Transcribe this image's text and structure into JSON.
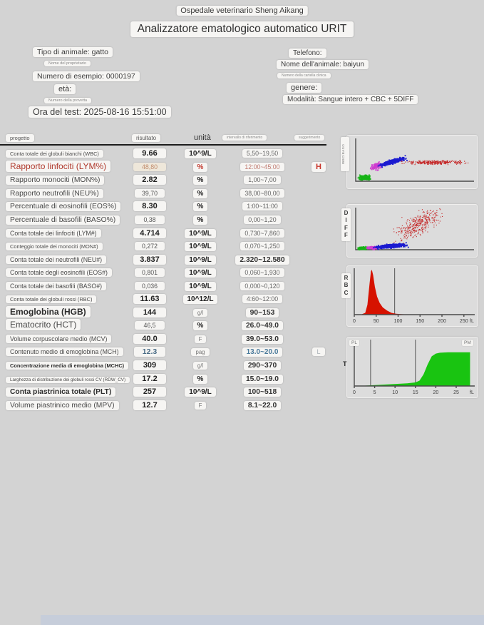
{
  "header": {
    "hospital": "Ospedale veterinario Sheng Aikang",
    "title": "Analizzatore ematologico automatico URIT"
  },
  "info": {
    "left": [
      {
        "text": "Tipo di animale: gatto"
      },
      {
        "text": "Nome del proprietario"
      },
      {
        "text": "Numero di esempio: 0000197"
      },
      {
        "text": "età:"
      },
      {
        "text": "Numero della provetta"
      },
      {
        "text": "Ora del test: 2025-08-16 15:51:00"
      }
    ],
    "right": [
      {
        "text": "Telefono:"
      },
      {
        "text": "Nome dell'animale: baiyun"
      },
      {
        "text": "Numero della cartella clinica"
      },
      {
        "text": "genere:"
      },
      {
        "text": "Modalità: Sangue intero + CBC + 5DIFF"
      }
    ]
  },
  "table": {
    "columns": {
      "project": "progetto",
      "result": "risultato",
      "unit": "unità",
      "range": "intervallo di riferimento",
      "suggestion": "suggerimento"
    },
    "rows": [
      {
        "label": "Conta totale dei globuli bianchi (WBC)",
        "result": "9.66",
        "unit": "10^9/L",
        "range": "5,50~19,50",
        "flag": "",
        "label_size": "xs",
        "result_style": "bold",
        "range_style": "plain"
      },
      {
        "label": "Rapporto linfociti (LYM%)",
        "result": "48,80",
        "unit": "%",
        "range": "12:00~45:00",
        "flag": "H",
        "alert": true,
        "label_size": "l",
        "result_style": "alert",
        "range_style": "alert"
      },
      {
        "label": "Rapporto monociti (MON%)",
        "result": "2.82",
        "unit": "%",
        "range": "1,00~7,00",
        "flag": "",
        "label_size": "m",
        "result_style": "bold",
        "range_style": "plain"
      },
      {
        "label": "Rapporto neutrofili (NEU%)",
        "result": "39,70",
        "unit": "%",
        "range": "38,00~80,00",
        "flag": "",
        "label_size": "m",
        "result_style": "plain",
        "range_style": "plain"
      },
      {
        "label": "Percentuale di eosinofili (EOS%)",
        "result": "8.30",
        "unit": "%",
        "range": "1:00~11:00",
        "flag": "",
        "label_size": "m",
        "result_style": "bold",
        "range_style": "plain"
      },
      {
        "label": "Percentuale di basofili (BASO%)",
        "result": "0,38",
        "unit": "%",
        "range": "0,00~1,20",
        "flag": "",
        "label_size": "m",
        "result_style": "plain",
        "range_style": "plain"
      },
      {
        "label": "Conta totale dei linfociti (LYM#)",
        "result": "4.714",
        "unit": "10^9/L",
        "range": "0,730~7,860",
        "flag": "",
        "label_size": "s",
        "result_style": "bold",
        "range_style": "plain"
      },
      {
        "label": "Conteggio totale dei monociti (MON#)",
        "result": "0,272",
        "unit": "10^9/L",
        "range": "0,070~1,250",
        "flag": "",
        "label_size": "xs",
        "result_style": "plain",
        "range_style": "plain"
      },
      {
        "label": "Conta totale dei neutrofili (NEU#)",
        "result": "3.837",
        "unit": "10^9/L",
        "range": "2.320~12.580",
        "flag": "",
        "label_size": "s",
        "result_style": "bold",
        "range_style": "bold"
      },
      {
        "label": "Conta totale degli eosinofili (EOS#)",
        "result": "0,801",
        "unit": "10^9/L",
        "range": "0,060~1,930",
        "flag": "",
        "label_size": "s",
        "result_style": "plain",
        "range_style": "plain"
      },
      {
        "label": "Conta totale dei basofili (BASO#)",
        "result": "0,036",
        "unit": "10^9/L",
        "range": "0,000~0,120",
        "flag": "",
        "label_size": "s",
        "result_style": "plain",
        "range_style": "plain"
      },
      {
        "label": "Conta totale dei globuli rossi (RBC)",
        "result": "11.63",
        "unit": "10^12/L",
        "range": "4:60~12:00",
        "flag": "",
        "label_size": "xs",
        "result_style": "bold",
        "range_style": "plain"
      },
      {
        "label": "Emoglobina (HGB)",
        "result": "144",
        "unit": "g/l",
        "range": "90~153",
        "flag": "",
        "label_size": "l",
        "label_bold": true,
        "result_style": "bold",
        "range_style": "bold"
      },
      {
        "label": "Ematocrito (HCT)",
        "result": "46,5",
        "unit": "%",
        "range": "26.0~49.0",
        "flag": "",
        "label_size": "l",
        "result_style": "plain",
        "range_style": "bold"
      },
      {
        "label": "Volume corpuscolare medio (MCV)",
        "result": "40.0",
        "unit": "F",
        "range": "39.0~53.0",
        "flag": "",
        "label_size": "s",
        "result_style": "bold",
        "range_style": "bold"
      },
      {
        "label": "Contenuto medio di emoglobina (MCH)",
        "result": "12.3",
        "unit": "pag",
        "range": "13.0~20.0",
        "flag": "L",
        "label_size": "s",
        "result_style": "steel",
        "range_style": "steel"
      },
      {
        "label": "Concentrazione media di emoglobina (MCHC)",
        "result": "309",
        "unit": "g/l",
        "range": "290~370",
        "flag": "",
        "label_size": "xs",
        "label_bold": true,
        "result_style": "bold",
        "range_style": "bold"
      },
      {
        "label": "Larghezza di distribuzione dei globuli rossi CV (RDW_CV)",
        "result": "17.2",
        "unit": "%",
        "range": "15.0~19.0",
        "flag": "",
        "label_size": "xxs",
        "result_style": "bold",
        "range_style": "bold"
      },
      {
        "label": "Conta piastrinica totale (PLT)",
        "result": "257",
        "unit": "10^9/L",
        "range": "100~518",
        "flag": "",
        "label_size": "m",
        "label_bold": true,
        "result_style": "bold",
        "range_style": "bold"
      },
      {
        "label": "Volume piastrinico medio (MPV)",
        "result": "12.7",
        "unit": "F",
        "range": "8.1~22.0",
        "flag": "",
        "label_size": "m",
        "result_style": "bold",
        "range_style": "bold"
      }
    ]
  },
  "chart_data": [
    {
      "type": "scatter",
      "name": "wbc",
      "side_label": "WBC/BASO",
      "clusters": [
        {
          "name": "green-cluster",
          "color": "#17b417",
          "cx": 0.07,
          "cy": 0.1,
          "sx": 0.045,
          "sy": 0.055,
          "count": 260,
          "size": 1.8,
          "tilt": 0
        },
        {
          "name": "magenta-cluster",
          "color": "#cf3ecf",
          "cx": 0.165,
          "cy": 0.36,
          "sx": 0.05,
          "sy": 0.08,
          "count": 150,
          "size": 1.6,
          "tilt": 0.3
        },
        {
          "name": "blue-cluster",
          "color": "#1b1bd0",
          "cx": 0.305,
          "cy": 0.47,
          "sx": 0.095,
          "sy": 0.05,
          "count": 430,
          "size": 1.8,
          "tilt": 0.35
        },
        {
          "name": "red-cluster",
          "color": "#c42626",
          "cx": 0.66,
          "cy": 0.45,
          "sx": 0.26,
          "sy": 0.05,
          "count": 260,
          "size": 1.2,
          "tilt": 0
        }
      ]
    },
    {
      "type": "scatter",
      "name": "diff",
      "side_label": "DIFF",
      "clusters": [
        {
          "name": "green-cluster",
          "color": "#17b417",
          "cx": 0.05,
          "cy": 0.05,
          "sx": 0.035,
          "sy": 0.035,
          "count": 170,
          "size": 1.8,
          "tilt": 0
        },
        {
          "name": "magenta-cluster",
          "color": "#cf3ecf",
          "cx": 0.13,
          "cy": 0.06,
          "sx": 0.05,
          "sy": 0.035,
          "count": 120,
          "size": 1.6,
          "tilt": 0
        },
        {
          "name": "blue-cluster",
          "color": "#1b1bd0",
          "cx": 0.29,
          "cy": 0.1,
          "sx": 0.115,
          "sy": 0.045,
          "count": 520,
          "size": 1.8,
          "tilt": 0.1
        },
        {
          "name": "red-cloud",
          "color": "#c42626",
          "cx": 0.52,
          "cy": 0.6,
          "sx": 0.19,
          "sy": 0.27,
          "count": 380,
          "size": 1.1,
          "tilt": 0.6
        }
      ]
    },
    {
      "type": "histogram",
      "name": "rbc",
      "side_label": "RBC",
      "color": "#d61200",
      "xmax": 265,
      "ticks": [
        0,
        50,
        100,
        150,
        200,
        250
      ],
      "unit": "fL",
      "curve": [
        [
          15,
          0
        ],
        [
          25,
          4
        ],
        [
          30,
          22
        ],
        [
          35,
          70
        ],
        [
          38,
          96
        ],
        [
          40,
          100
        ],
        [
          43,
          88
        ],
        [
          47,
          62
        ],
        [
          52,
          40
        ],
        [
          58,
          26
        ],
        [
          65,
          16
        ],
        [
          75,
          9
        ],
        [
          85,
          4
        ],
        [
          95,
          2
        ],
        [
          110,
          1
        ],
        [
          130,
          0
        ]
      ],
      "markers": [
        92
      ]
    },
    {
      "type": "histogram",
      "name": "plt",
      "side_label": "T",
      "corner_labels": {
        "left": "PL",
        "right": "PM"
      },
      "color": "#19c411",
      "xmax": 28.5,
      "ticks": [
        0,
        5,
        10,
        15,
        20,
        25
      ],
      "unit": "fL",
      "curve": [
        [
          1,
          0
        ],
        [
          3,
          1
        ],
        [
          5,
          2
        ],
        [
          7,
          3
        ],
        [
          9,
          4
        ],
        [
          11,
          5
        ],
        [
          13,
          6
        ],
        [
          14,
          7
        ],
        [
          15,
          8
        ],
        [
          16,
          12
        ],
        [
          17,
          26
        ],
        [
          18,
          48
        ],
        [
          19,
          66
        ],
        [
          20,
          72
        ],
        [
          21,
          74
        ],
        [
          23,
          75
        ],
        [
          25,
          75
        ],
        [
          27,
          75
        ],
        [
          28.4,
          75
        ]
      ],
      "markers": [
        4,
        15
      ]
    }
  ]
}
